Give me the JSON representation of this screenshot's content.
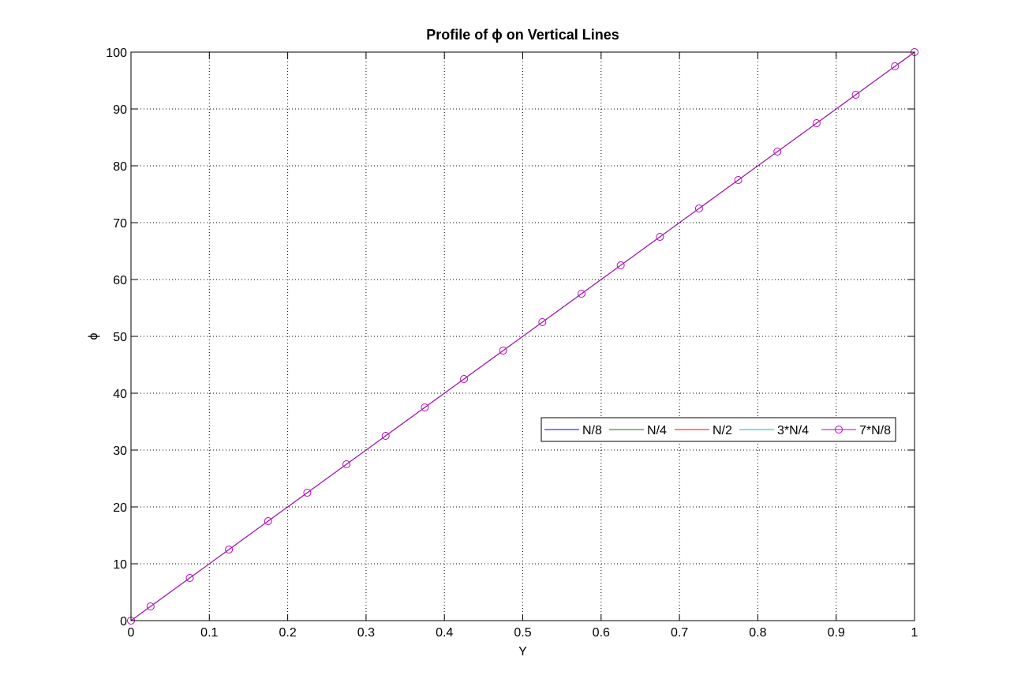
{
  "chart_data": {
    "type": "line",
    "title": "Profile of ϕ on Vertical Lines",
    "xlabel": "Y",
    "ylabel": "ϕ",
    "xlim": [
      0,
      1
    ],
    "ylim": [
      0,
      100
    ],
    "xticks": [
      0,
      0.1,
      0.2,
      0.3,
      0.4,
      0.5,
      0.6,
      0.7,
      0.8,
      0.9,
      1
    ],
    "xtick_labels": [
      "0",
      "0.1",
      "0.2",
      "0.3",
      "0.4",
      "0.5",
      "0.6",
      "0.7",
      "0.8",
      "0.9",
      "1"
    ],
    "yticks": [
      0,
      10,
      20,
      30,
      40,
      50,
      60,
      70,
      80,
      90,
      100
    ],
    "ytick_labels": [
      "0",
      "10",
      "20",
      "30",
      "40",
      "50",
      "60",
      "70",
      "80",
      "90",
      "100"
    ],
    "grid": true,
    "legend_position": "center-right",
    "x": [
      0,
      0.025,
      0.075,
      0.125,
      0.175,
      0.225,
      0.275,
      0.325,
      0.375,
      0.425,
      0.475,
      0.525,
      0.575,
      0.625,
      0.675,
      0.725,
      0.775,
      0.825,
      0.875,
      0.925,
      0.975,
      1
    ],
    "series": [
      {
        "name": "N/8",
        "color": "#0000ff",
        "marker": "none",
        "values": [
          0,
          2.5,
          7.5,
          12.5,
          17.5,
          22.5,
          27.5,
          32.5,
          37.5,
          42.5,
          47.5,
          52.5,
          57.5,
          62.5,
          67.5,
          72.5,
          77.5,
          82.5,
          87.5,
          92.5,
          97.5,
          100
        ]
      },
      {
        "name": "N/4",
        "color": "#008000",
        "marker": "none",
        "values": [
          0,
          2.5,
          7.5,
          12.5,
          17.5,
          22.5,
          27.5,
          32.5,
          37.5,
          42.5,
          47.5,
          52.5,
          57.5,
          62.5,
          67.5,
          72.5,
          77.5,
          82.5,
          87.5,
          92.5,
          97.5,
          100
        ]
      },
      {
        "name": "N/2",
        "color": "#ff0000",
        "marker": "none",
        "values": [
          0,
          2.5,
          7.5,
          12.5,
          17.5,
          22.5,
          27.5,
          32.5,
          37.5,
          42.5,
          47.5,
          52.5,
          57.5,
          62.5,
          67.5,
          72.5,
          77.5,
          82.5,
          87.5,
          92.5,
          97.5,
          100
        ]
      },
      {
        "name": "3*N/4",
        "color": "#00bfbf",
        "marker": "none",
        "values": [
          0,
          2.5,
          7.5,
          12.5,
          17.5,
          22.5,
          27.5,
          32.5,
          37.5,
          42.5,
          47.5,
          52.5,
          57.5,
          62.5,
          67.5,
          72.5,
          77.5,
          82.5,
          87.5,
          92.5,
          97.5,
          100
        ]
      },
      {
        "name": "7*N/8",
        "color": "#bf00bf",
        "marker": "circle",
        "values": [
          0,
          2.5,
          7.5,
          12.5,
          17.5,
          22.5,
          27.5,
          32.5,
          37.5,
          42.5,
          47.5,
          52.5,
          57.5,
          62.5,
          67.5,
          72.5,
          77.5,
          82.5,
          87.5,
          92.5,
          97.5,
          100
        ]
      }
    ]
  }
}
